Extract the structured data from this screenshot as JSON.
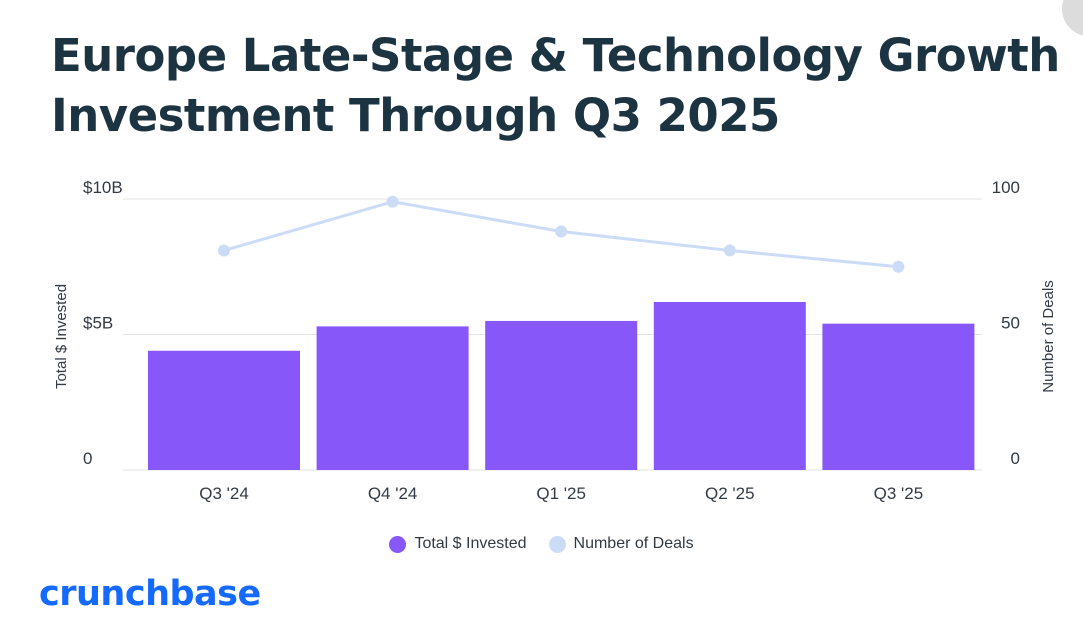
{
  "title": "Europe Late-Stage & Technology Growth Investment Through Q3 2025",
  "brand": "crunchbase",
  "colors": {
    "bar": "#8757fa",
    "line": "#ccdcf7",
    "brand": "#146aff",
    "title": "#1c3342",
    "grid": "#e3e3e3"
  },
  "chart_data": {
    "type": "bar",
    "categories": [
      "Q3 '24",
      "Q4 '24",
      "Q1 '25",
      "Q2 '25",
      "Q3 '25"
    ],
    "series": [
      {
        "name": "Total $ Invested",
        "axis": "left",
        "kind": "bar",
        "unit": "$B",
        "values": [
          4.4,
          5.3,
          5.5,
          6.2,
          5.4
        ]
      },
      {
        "name": "Number of Deals",
        "axis": "right",
        "kind": "line",
        "values": [
          81,
          99,
          88,
          81,
          75
        ]
      }
    ],
    "ylabel": "Total $ Invested",
    "y2label": "Number of Deals",
    "ylim": [
      0,
      10
    ],
    "y2lim": [
      0,
      100
    ],
    "yticks": [
      {
        "value": 0,
        "label": "0"
      },
      {
        "value": 5,
        "label": "$5B"
      },
      {
        "value": 10,
        "label": "$10B"
      }
    ],
    "y2ticks": [
      {
        "value": 0,
        "label": "0"
      },
      {
        "value": 50,
        "label": "50"
      },
      {
        "value": 100,
        "label": "100"
      }
    ],
    "legend_position": "bottom-center",
    "grid": true
  }
}
